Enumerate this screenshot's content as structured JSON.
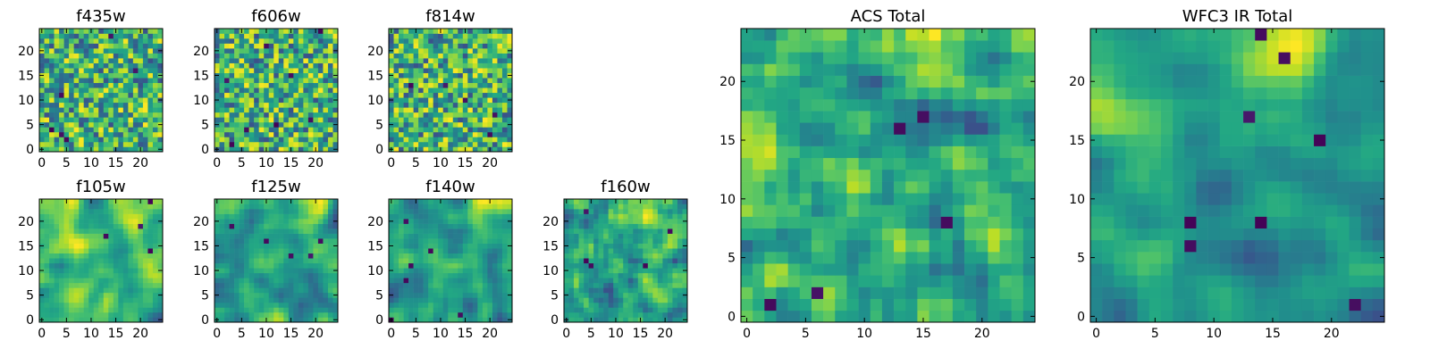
{
  "chart_data": [
    {
      "type": "heatmap",
      "title": "f435w",
      "grid_size": 25,
      "xlim": [
        -0.5,
        24.5
      ],
      "ylim": [
        -0.5,
        24.5
      ],
      "xticks": [
        0,
        5,
        10,
        15,
        20
      ],
      "yticks": [
        0,
        5,
        10,
        15,
        20
      ],
      "colormap": "viridis",
      "seed": 11,
      "smooth": 0,
      "blobs": []
    },
    {
      "type": "heatmap",
      "title": "f606w",
      "grid_size": 25,
      "xlim": [
        -0.5,
        24.5
      ],
      "ylim": [
        -0.5,
        24.5
      ],
      "xticks": [
        0,
        5,
        10,
        15,
        20
      ],
      "yticks": [
        0,
        5,
        10,
        15,
        20
      ],
      "colormap": "viridis",
      "seed": 23,
      "smooth": 0,
      "blobs": []
    },
    {
      "type": "heatmap",
      "title": "f814w",
      "grid_size": 25,
      "xlim": [
        -0.5,
        24.5
      ],
      "ylim": [
        -0.5,
        24.5
      ],
      "xticks": [
        0,
        5,
        10,
        15,
        20
      ],
      "yticks": [
        0,
        5,
        10,
        15,
        20
      ],
      "colormap": "viridis",
      "seed": 37,
      "smooth": 0,
      "blobs": []
    },
    {
      "type": "heatmap",
      "title": "f105w",
      "grid_size": 25,
      "xlim": [
        -0.5,
        24.5
      ],
      "ylim": [
        -0.5,
        24.5
      ],
      "xticks": [
        0,
        5,
        10,
        15,
        20
      ],
      "yticks": [
        0,
        5,
        10,
        15,
        20
      ],
      "colormap": "viridis",
      "seed": 41,
      "smooth": 2,
      "blobs": [
        [
          18,
          24,
          0.25
        ]
      ]
    },
    {
      "type": "heatmap",
      "title": "f125w",
      "grid_size": 25,
      "xlim": [
        -0.5,
        24.5
      ],
      "ylim": [
        -0.5,
        24.5
      ],
      "xticks": [
        0,
        5,
        10,
        15,
        20
      ],
      "yticks": [
        0,
        5,
        10,
        15,
        20
      ],
      "colormap": "viridis",
      "seed": 53,
      "smooth": 2,
      "blobs": [
        [
          20,
          24,
          0.25
        ]
      ]
    },
    {
      "type": "heatmap",
      "title": "f140w",
      "grid_size": 25,
      "xlim": [
        -0.5,
        24.5
      ],
      "ylim": [
        -0.5,
        24.5
      ],
      "xticks": [
        0,
        5,
        10,
        15,
        20
      ],
      "yticks": [
        0,
        5,
        10,
        15,
        20
      ],
      "colormap": "viridis",
      "seed": 67,
      "smooth": 2,
      "blobs": [
        [
          19,
          24,
          0.3
        ]
      ]
    },
    {
      "type": "heatmap",
      "title": "f160w",
      "grid_size": 25,
      "xlim": [
        -0.5,
        24.5
      ],
      "ylim": [
        -0.5,
        24.5
      ],
      "xticks": [
        0,
        5,
        10,
        15,
        20
      ],
      "yticks": [
        0,
        5,
        10,
        15,
        20
      ],
      "colormap": "viridis",
      "seed": 79,
      "smooth": 1,
      "blobs": [
        [
          17,
          22,
          0.25
        ]
      ]
    },
    {
      "type": "heatmap",
      "title": "ACS Total",
      "grid_size": 25,
      "xlim": [
        -0.5,
        24.5
      ],
      "ylim": [
        -0.5,
        24.5
      ],
      "xticks": [
        0,
        5,
        10,
        15,
        20
      ],
      "yticks": [
        0,
        5,
        10,
        15,
        20
      ],
      "colormap": "viridis",
      "seed": 97,
      "smooth": 1,
      "blobs": [
        [
          16,
          24,
          0.2
        ],
        [
          1,
          16,
          0.15
        ]
      ]
    },
    {
      "type": "heatmap",
      "title": "WFC3 IR Total",
      "grid_size": 25,
      "xlim": [
        -0.5,
        24.5
      ],
      "ylim": [
        -0.5,
        24.5
      ],
      "xticks": [
        0,
        5,
        10,
        15,
        20
      ],
      "yticks": [
        0,
        5,
        10,
        15,
        20
      ],
      "colormap": "viridis",
      "seed": 131,
      "smooth": 2,
      "blobs": [
        [
          16,
          24,
          0.35
        ],
        [
          2,
          17,
          0.2
        ]
      ]
    }
  ]
}
